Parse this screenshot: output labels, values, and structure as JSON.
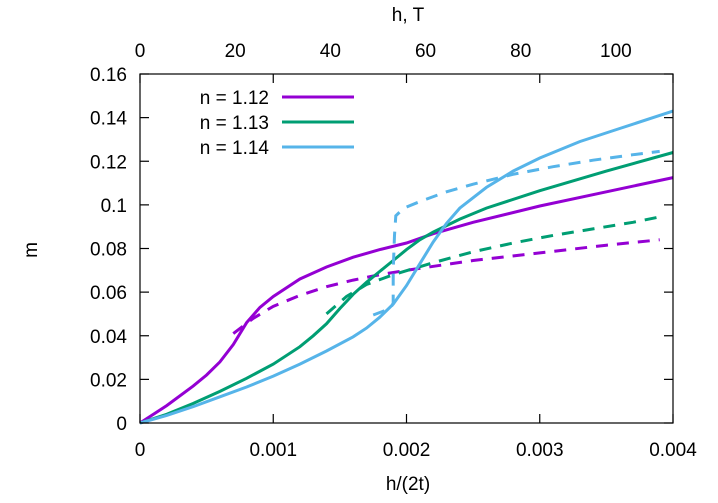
{
  "chart_data": {
    "type": "line",
    "title": "",
    "xlabel": "h/(2t)",
    "ylabel": "m",
    "top_xlabel": "h, T",
    "xlim": [
      0,
      0.004
    ],
    "ylim": [
      0,
      0.16
    ],
    "top_xlim": [
      0,
      112
    ],
    "xticks": [
      {
        "value": 0,
        "label": "0"
      },
      {
        "value": 0.001,
        "label": "0.001"
      },
      {
        "value": 0.002,
        "label": "0.002"
      },
      {
        "value": 0.003,
        "label": "0.003"
      },
      {
        "value": 0.004,
        "label": "0.004"
      }
    ],
    "top_xticks": [
      {
        "value": 0,
        "label": "0"
      },
      {
        "value": 20,
        "label": "20"
      },
      {
        "value": 40,
        "label": "40"
      },
      {
        "value": 60,
        "label": "60"
      },
      {
        "value": 80,
        "label": "80"
      },
      {
        "value": 100,
        "label": "100"
      }
    ],
    "yticks": [
      {
        "value": 0,
        "label": "0"
      },
      {
        "value": 0.02,
        "label": "0.02"
      },
      {
        "value": 0.04,
        "label": "0.04"
      },
      {
        "value": 0.06,
        "label": "0.06"
      },
      {
        "value": 0.08,
        "label": "0.08"
      },
      {
        "value": 0.1,
        "label": "0.1"
      },
      {
        "value": 0.12,
        "label": "0.12"
      },
      {
        "value": 0.14,
        "label": "0.14"
      },
      {
        "value": 0.16,
        "label": "0.16"
      }
    ],
    "grid": false,
    "legend_position": "top-left",
    "series": [
      {
        "name": "n = 1.12",
        "color": "#9400d3",
        "solid": [
          [
            0,
            0
          ],
          [
            0.0002,
            0.008
          ],
          [
            0.0004,
            0.017
          ],
          [
            0.0005,
            0.022
          ],
          [
            0.0006,
            0.028
          ],
          [
            0.0007,
            0.036
          ],
          [
            0.0008,
            0.046
          ],
          [
            0.0009,
            0.053
          ],
          [
            0.001,
            0.058
          ],
          [
            0.0012,
            0.066
          ],
          [
            0.0014,
            0.0715
          ],
          [
            0.0016,
            0.076
          ],
          [
            0.0018,
            0.0795
          ],
          [
            0.002,
            0.0825
          ],
          [
            0.0022,
            0.0868
          ],
          [
            0.0025,
            0.092
          ],
          [
            0.003,
            0.0995
          ],
          [
            0.0035,
            0.106
          ],
          [
            0.004,
            0.1125
          ]
        ],
        "dashed": [
          [
            0.0007,
            0.041
          ],
          [
            0.00085,
            0.048
          ],
          [
            0.001,
            0.0535
          ],
          [
            0.0012,
            0.0585
          ],
          [
            0.0014,
            0.0625
          ],
          [
            0.0016,
            0.0655
          ],
          [
            0.0018,
            0.068
          ],
          [
            0.002,
            0.07
          ],
          [
            0.0025,
            0.0745
          ],
          [
            0.003,
            0.078
          ],
          [
            0.0035,
            0.0815
          ],
          [
            0.0039,
            0.084
          ]
        ]
      },
      {
        "name": "n = 1.13",
        "color": "#009e73",
        "solid": [
          [
            0,
            0
          ],
          [
            0.0002,
            0.004
          ],
          [
            0.0004,
            0.009
          ],
          [
            0.0006,
            0.0145
          ],
          [
            0.0008,
            0.0205
          ],
          [
            0.001,
            0.027
          ],
          [
            0.0012,
            0.035
          ],
          [
            0.0013,
            0.04
          ],
          [
            0.0014,
            0.0455
          ],
          [
            0.0015,
            0.0525
          ],
          [
            0.0016,
            0.059
          ],
          [
            0.0017,
            0.0645
          ],
          [
            0.0018,
            0.0695
          ],
          [
            0.0019,
            0.0745
          ],
          [
            0.002,
            0.0795
          ],
          [
            0.0021,
            0.084
          ],
          [
            0.0022,
            0.0875
          ],
          [
            0.0024,
            0.0935
          ],
          [
            0.0026,
            0.0985
          ],
          [
            0.003,
            0.1065
          ],
          [
            0.0035,
            0.1155
          ],
          [
            0.004,
            0.124
          ]
        ],
        "dashed": [
          [
            0.0014,
            0.05
          ],
          [
            0.00155,
            0.058
          ],
          [
            0.0017,
            0.0635
          ],
          [
            0.0019,
            0.068
          ],
          [
            0.0022,
            0.0735
          ],
          [
            0.0025,
            0.0785
          ],
          [
            0.0028,
            0.0825
          ],
          [
            0.0031,
            0.086
          ],
          [
            0.0034,
            0.089
          ],
          [
            0.0037,
            0.092
          ],
          [
            0.0039,
            0.0945
          ]
        ]
      },
      {
        "name": "n = 1.14",
        "color": "#56b4e9",
        "solid": [
          [
            0,
            0
          ],
          [
            0.0002,
            0.0035
          ],
          [
            0.0004,
            0.0075
          ],
          [
            0.0006,
            0.012
          ],
          [
            0.0008,
            0.0165
          ],
          [
            0.001,
            0.0215
          ],
          [
            0.0012,
            0.027
          ],
          [
            0.0014,
            0.033
          ],
          [
            0.0016,
            0.0395
          ],
          [
            0.0017,
            0.0435
          ],
          [
            0.0018,
            0.0485
          ],
          [
            0.0019,
            0.0545
          ],
          [
            0.002,
            0.063
          ],
          [
            0.0021,
            0.073
          ],
          [
            0.0022,
            0.083
          ],
          [
            0.0023,
            0.0915
          ],
          [
            0.0024,
            0.0985
          ],
          [
            0.0026,
            0.108
          ],
          [
            0.0028,
            0.1155
          ],
          [
            0.003,
            0.1215
          ],
          [
            0.0033,
            0.129
          ],
          [
            0.0036,
            0.135
          ],
          [
            0.004,
            0.143
          ]
        ],
        "dashed": [
          [
            0.00175,
            0.0495
          ],
          [
            0.00188,
            0.0525
          ],
          [
            0.0019,
            0.055
          ],
          [
            0.0019,
            0.07
          ],
          [
            0.00191,
            0.086
          ],
          [
            0.00192,
            0.095
          ],
          [
            0.00198,
            0.0985
          ],
          [
            0.0021,
            0.1015
          ],
          [
            0.0023,
            0.106
          ],
          [
            0.0025,
            0.1095
          ],
          [
            0.0028,
            0.114
          ],
          [
            0.0031,
            0.1175
          ],
          [
            0.0034,
            0.1205
          ],
          [
            0.0037,
            0.123
          ],
          [
            0.0039,
            0.1245
          ]
        ]
      }
    ]
  }
}
